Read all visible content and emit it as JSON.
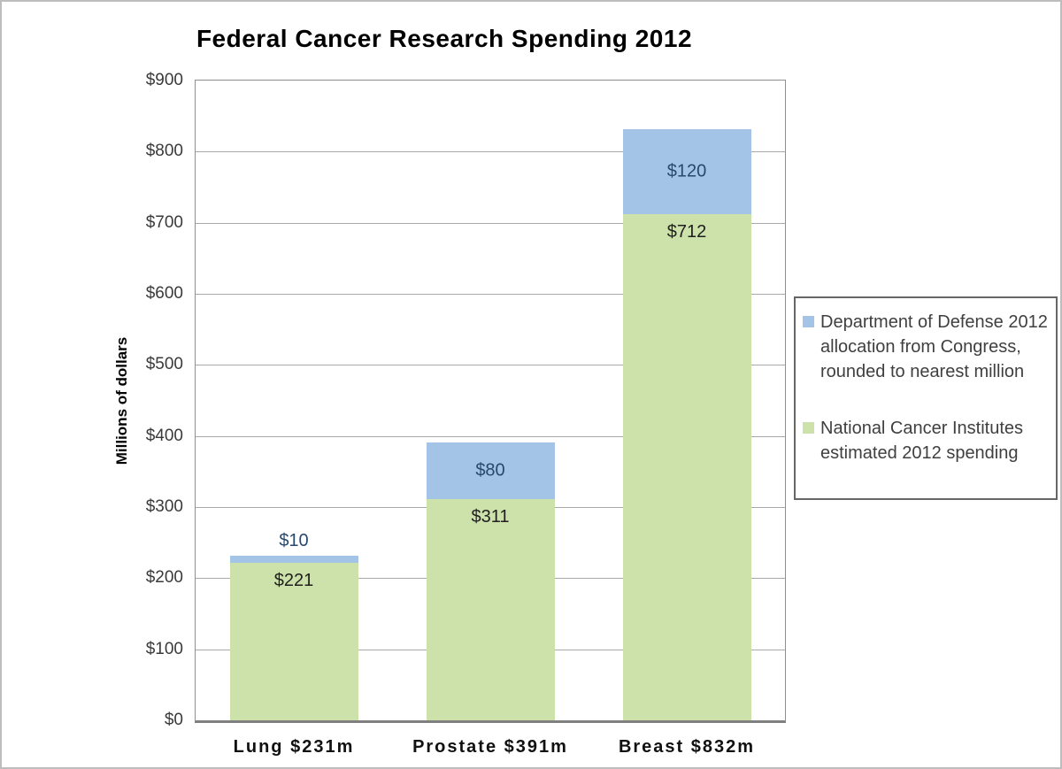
{
  "window": {
    "background": "#ffffff",
    "frame_border_color": "#bdbdbd"
  },
  "chart_data": {
    "type": "bar",
    "stacked": true,
    "title": "Federal Cancer Research Spending 2012",
    "ylabel": "Millions of dollars",
    "xlabel": "",
    "ylim": [
      0,
      900
    ],
    "ytick_step": 100,
    "yticks": [
      "$0",
      "$100",
      "$200",
      "$300",
      "$400",
      "$500",
      "$600",
      "$700",
      "$800",
      "$900"
    ],
    "grid": true,
    "legend_position": "right",
    "categories": [
      "Lung $231m",
      "Prostate $391m",
      "Breast $832m"
    ],
    "category_totals": [
      231,
      391,
      832
    ],
    "series": [
      {
        "name": "National Cancer Institutes estimated 2012 spending",
        "color": "#cde1ab",
        "label_color": "#1f1f1f",
        "values": [
          221,
          311,
          712
        ],
        "value_labels": [
          "$221",
          "$311",
          "$712"
        ],
        "label_positions": [
          "inside-top",
          "inside-top",
          "inside-top"
        ]
      },
      {
        "name": "Department of Defense 2012 allocation from Congress, rounded to nearest million",
        "color": "#a3c4e6",
        "label_color": "#27496d",
        "values": [
          10,
          80,
          120
        ],
        "value_labels": [
          "$10",
          "$80",
          "$120"
        ],
        "label_positions": [
          "above",
          "center",
          "center"
        ]
      }
    ],
    "colors": {
      "gridline": "#a9a9a9",
      "plot_border": "#8f8f8f",
      "axis_line": "#7f7f7f",
      "legend_border": "#666666",
      "legend_text": "#3f3f3f"
    }
  }
}
